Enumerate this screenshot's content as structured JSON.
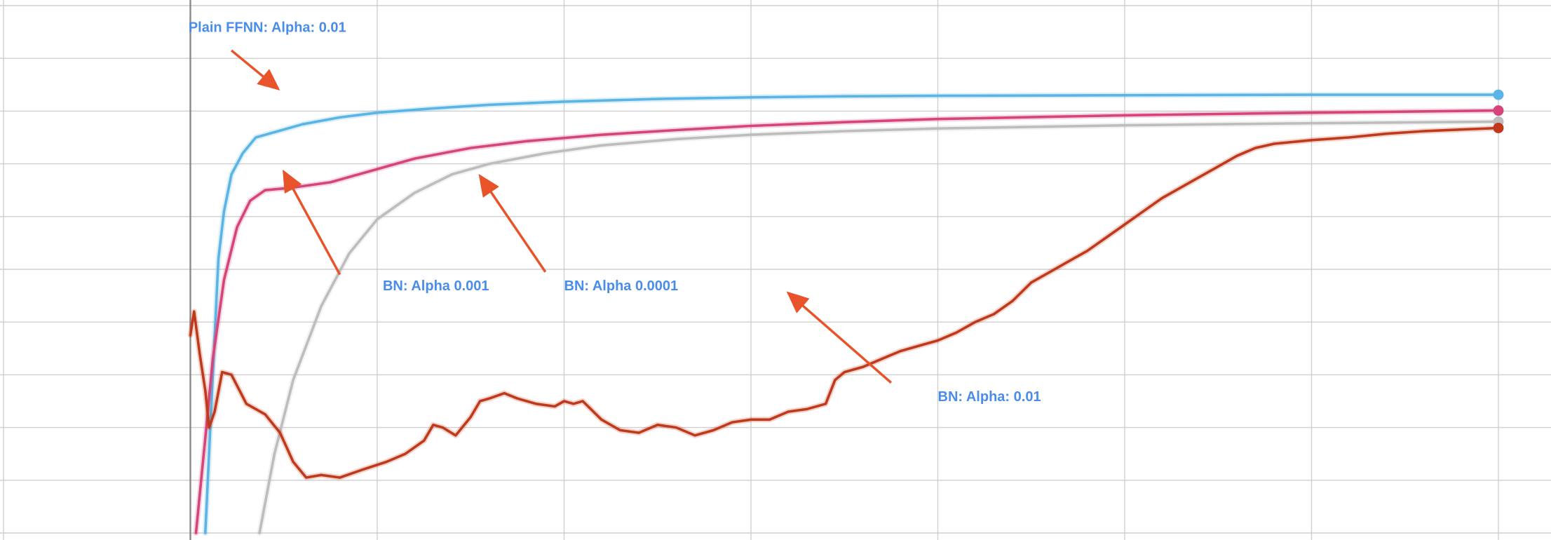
{
  "chart_data": {
    "type": "line",
    "title": "",
    "xlabel": "",
    "ylabel": "",
    "xlim": [
      -1,
      7
    ],
    "ylim": [
      0,
      10
    ],
    "grid": true,
    "x_gridlines": [
      -1,
      0,
      1,
      2,
      3,
      4,
      5,
      6,
      7
    ],
    "y_gridlines": [
      0,
      1,
      2,
      3,
      4,
      5,
      6,
      7,
      8,
      9,
      10
    ],
    "zero_line_x": 0,
    "series": [
      {
        "color": "#5ab4e5",
        "endpoint_marker": true,
        "points": [
          [
            0.08,
            0
          ],
          [
            0.12,
            3.0
          ],
          [
            0.15,
            5.2
          ],
          [
            0.18,
            6.1
          ],
          [
            0.22,
            6.8
          ],
          [
            0.28,
            7.2
          ],
          [
            0.35,
            7.5
          ],
          [
            0.45,
            7.6
          ],
          [
            0.6,
            7.75
          ],
          [
            0.8,
            7.88
          ],
          [
            1.0,
            7.97
          ],
          [
            1.3,
            8.05
          ],
          [
            1.6,
            8.12
          ],
          [
            2.0,
            8.18
          ],
          [
            2.5,
            8.23
          ],
          [
            3.0,
            8.26
          ],
          [
            3.5,
            8.28
          ],
          [
            4.0,
            8.29
          ],
          [
            5.0,
            8.3
          ],
          [
            6.0,
            8.31
          ],
          [
            7.0,
            8.31
          ]
        ]
      },
      {
        "color": "#d6457a",
        "endpoint_marker": true,
        "points": [
          [
            0.03,
            0
          ],
          [
            0.08,
            1.8
          ],
          [
            0.12,
            3.3
          ],
          [
            0.18,
            4.8
          ],
          [
            0.25,
            5.8
          ],
          [
            0.32,
            6.3
          ],
          [
            0.4,
            6.5
          ],
          [
            0.55,
            6.55
          ],
          [
            0.75,
            6.65
          ],
          [
            1.0,
            6.9
          ],
          [
            1.2,
            7.1
          ],
          [
            1.5,
            7.3
          ],
          [
            1.8,
            7.43
          ],
          [
            2.2,
            7.55
          ],
          [
            2.6,
            7.64
          ],
          [
            3.0,
            7.72
          ],
          [
            3.5,
            7.79
          ],
          [
            4.0,
            7.85
          ],
          [
            5.0,
            7.92
          ],
          [
            6.0,
            7.97
          ],
          [
            7.0,
            8.01
          ]
        ]
      },
      {
        "color": "#bdbdbd",
        "endpoint_marker": true,
        "points": [
          [
            0.37,
            0
          ],
          [
            0.45,
            1.5
          ],
          [
            0.55,
            2.9
          ],
          [
            0.7,
            4.3
          ],
          [
            0.85,
            5.3
          ],
          [
            1.0,
            5.95
          ],
          [
            1.2,
            6.45
          ],
          [
            1.4,
            6.8
          ],
          [
            1.6,
            7.0
          ],
          [
            1.9,
            7.2
          ],
          [
            2.2,
            7.35
          ],
          [
            2.6,
            7.47
          ],
          [
            3.0,
            7.55
          ],
          [
            3.5,
            7.62
          ],
          [
            4.0,
            7.67
          ],
          [
            5.0,
            7.73
          ],
          [
            6.0,
            7.77
          ],
          [
            7.0,
            7.8
          ]
        ]
      },
      {
        "color": "#c0391b",
        "endpoint_marker": true,
        "points": [
          [
            0.0,
            3.75
          ],
          [
            0.02,
            4.2
          ],
          [
            0.05,
            3.4
          ],
          [
            0.08,
            2.7
          ],
          [
            0.1,
            2.0
          ],
          [
            0.13,
            2.3
          ],
          [
            0.17,
            3.05
          ],
          [
            0.22,
            3.0
          ],
          [
            0.3,
            2.45
          ],
          [
            0.4,
            2.25
          ],
          [
            0.48,
            1.9
          ],
          [
            0.55,
            1.35
          ],
          [
            0.62,
            1.05
          ],
          [
            0.7,
            1.1
          ],
          [
            0.8,
            1.05
          ],
          [
            0.92,
            1.2
          ],
          [
            1.05,
            1.35
          ],
          [
            1.15,
            1.5
          ],
          [
            1.25,
            1.75
          ],
          [
            1.3,
            2.05
          ],
          [
            1.35,
            2.0
          ],
          [
            1.42,
            1.85
          ],
          [
            1.5,
            2.2
          ],
          [
            1.55,
            2.5
          ],
          [
            1.6,
            2.55
          ],
          [
            1.68,
            2.65
          ],
          [
            1.75,
            2.55
          ],
          [
            1.85,
            2.45
          ],
          [
            1.95,
            2.4
          ],
          [
            2.0,
            2.5
          ],
          [
            2.05,
            2.45
          ],
          [
            2.1,
            2.5
          ],
          [
            2.2,
            2.15
          ],
          [
            2.3,
            1.95
          ],
          [
            2.4,
            1.9
          ],
          [
            2.5,
            2.05
          ],
          [
            2.6,
            2.0
          ],
          [
            2.7,
            1.85
          ],
          [
            2.8,
            1.95
          ],
          [
            2.9,
            2.1
          ],
          [
            3.0,
            2.15
          ],
          [
            3.1,
            2.15
          ],
          [
            3.2,
            2.3
          ],
          [
            3.3,
            2.35
          ],
          [
            3.4,
            2.45
          ],
          [
            3.45,
            2.9
          ],
          [
            3.5,
            3.05
          ],
          [
            3.6,
            3.15
          ],
          [
            3.7,
            3.3
          ],
          [
            3.8,
            3.45
          ],
          [
            3.9,
            3.55
          ],
          [
            4.0,
            3.65
          ],
          [
            4.1,
            3.8
          ],
          [
            4.2,
            4.0
          ],
          [
            4.3,
            4.15
          ],
          [
            4.4,
            4.4
          ],
          [
            4.5,
            4.75
          ],
          [
            4.6,
            4.95
          ],
          [
            4.7,
            5.15
          ],
          [
            4.8,
            5.35
          ],
          [
            4.9,
            5.6
          ],
          [
            5.0,
            5.85
          ],
          [
            5.1,
            6.1
          ],
          [
            5.2,
            6.35
          ],
          [
            5.3,
            6.55
          ],
          [
            5.4,
            6.75
          ],
          [
            5.5,
            6.95
          ],
          [
            5.6,
            7.15
          ],
          [
            5.7,
            7.3
          ],
          [
            5.8,
            7.38
          ],
          [
            6.0,
            7.45
          ],
          [
            6.2,
            7.5
          ],
          [
            6.4,
            7.57
          ],
          [
            6.6,
            7.62
          ],
          [
            6.8,
            7.65
          ],
          [
            7.0,
            7.68
          ]
        ]
      }
    ],
    "annotations": [
      {
        "label": "Plain FFNN: Alpha: 0.01",
        "text_x": -0.01,
        "text_y": 9.5,
        "arrow_from": [
          0.22,
          9.15
        ],
        "arrow_to": [
          0.47,
          8.42
        ]
      },
      {
        "label": "BN: Alpha 0.001",
        "text_x": 1.03,
        "text_y": 4.6,
        "arrow_from": [
          0.8,
          4.9
        ],
        "arrow_to": [
          0.5,
          6.85
        ]
      },
      {
        "label": "BN: Alpha 0.0001",
        "text_x": 2.0,
        "text_y": 4.6,
        "arrow_from": [
          1.9,
          4.95
        ],
        "arrow_to": [
          1.55,
          6.77
        ]
      },
      {
        "label": "BN: Alpha: 0.01",
        "text_x": 4.0,
        "text_y": 2.5,
        "arrow_from": [
          3.75,
          2.85
        ],
        "arrow_to": [
          3.2,
          4.55
        ]
      }
    ],
    "annotation_color": "#4a8de8",
    "arrow_color": "#e8532a"
  }
}
